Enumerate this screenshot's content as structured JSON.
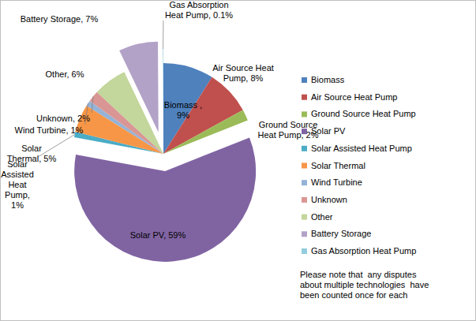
{
  "chart_data": {
    "type": "pie",
    "categories": [
      "Biomass",
      "Air Source Heat Pump",
      "Ground Source Heat Pump",
      "Solar PV",
      "Solar Assisted Heat Pump",
      "Solar Thermal",
      "Wind Turbine",
      "Unknown",
      "Other",
      "Battery Storage",
      "Gas Absorption Heat Pump"
    ],
    "values": [
      9,
      8,
      2,
      59,
      1,
      5,
      1,
      2,
      6,
      7,
      0.1
    ],
    "value_labels": [
      "Biomass , 9%",
      "Air Source Heat Pump, 8%",
      "Ground Source Heat Pump, 2%",
      "Solar PV, 59%",
      "Solar Assisted Heat Pump, 1%",
      "Solar Thermal, 5%",
      "Wind Turbine, 1%",
      "Unknown, 2%",
      "Other, 6%",
      "Battery Storage, 7%",
      "Gas Absorption Heat Pump, 0.1%"
    ],
    "colors": [
      "#4f81bd",
      "#c0504d",
      "#9bbb59",
      "#8064a2",
      "#4bacc6",
      "#f79646",
      "#95b3d7",
      "#d99694",
      "#c3d69b",
      "#b3a2c7",
      "#93cddd"
    ],
    "data_labels": true,
    "legend": "right",
    "annotations": [
      "Please note that  any disputes",
      "about multiple technologies  have",
      "been counted once for each"
    ]
  }
}
